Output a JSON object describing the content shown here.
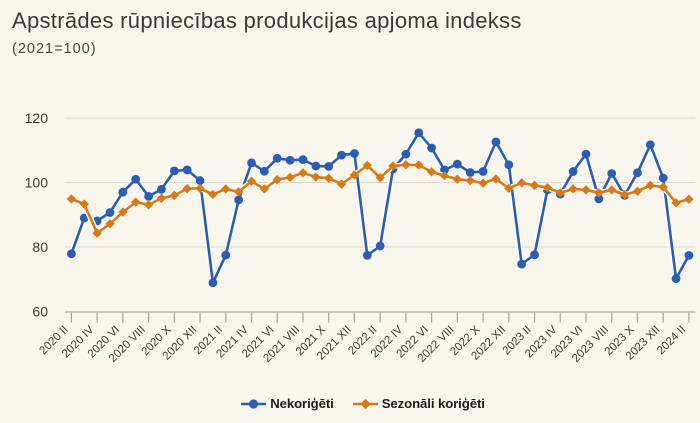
{
  "title": "Apstrādes rūpniecības produkcijas apjoma indekss",
  "subtitle": "(2021=100)",
  "colors": {
    "background": "#f9f6ed",
    "series_blue": "#2a5cb8",
    "series_orange": "#d97a16",
    "gridline": "#dcd8ce",
    "axis_line": "#c3bfb5",
    "tick": "#a6a298",
    "axis_label": "#3b3a35",
    "legend_text": "#1e1d1a",
    "halo": "#fdfcf8"
  },
  "legend": {
    "items": [
      {
        "label": "Nekoriģēti",
        "marker": "circle",
        "color": "#2a5cb8"
      },
      {
        "label": "Sezonāli koriģēti",
        "marker": "diamond",
        "color": "#d97a16"
      }
    ]
  },
  "chart_data": {
    "type": "line",
    "title": "Apstrādes rūpniecības produkcijas apjoma indekss",
    "subtitle": "(2021=100)",
    "xlabel": "",
    "ylabel": "",
    "ylim": [
      60,
      120
    ],
    "yticks": [
      60,
      80,
      100,
      120
    ],
    "grid": true,
    "legend_position": "bottom",
    "x_labels_shown_every": 2,
    "categories": [
      "2020 II",
      "2020 III",
      "2020 IV",
      "2020 V",
      "2020 VI",
      "2020 VII",
      "2020 VIII",
      "2020 IX",
      "2020 X",
      "2020 XI",
      "2020 XII",
      "2021 I",
      "2021 II",
      "2021 III",
      "2021 IV",
      "2021 V",
      "2021 VI",
      "2021 VII",
      "2021 VIII",
      "2021 IX",
      "2021 X",
      "2021 XI",
      "2021 XII",
      "2022 I",
      "2022 II",
      "2022 III",
      "2022 IV",
      "2022 V",
      "2022 VI",
      "2022 VII",
      "2022 VIII",
      "2022 IX",
      "2022 X",
      "2022 XI",
      "2022 XII",
      "2023 I",
      "2023 II",
      "2023 III",
      "2023 IV",
      "2023 V",
      "2023 VI",
      "2023 VII",
      "2023 VIII",
      "2023 IX",
      "2023 X",
      "2023 XI",
      "2023 XII",
      "2024 I",
      "2024 II"
    ],
    "series": [
      {
        "name": "Nekoriģēti",
        "color": "#2a5cb8",
        "marker": "circle",
        "values": [
          77.9,
          89.0,
          88.1,
          90.7,
          97.0,
          101.0,
          95.7,
          97.9,
          103.6,
          103.9,
          100.6,
          68.9,
          77.5,
          94.6,
          106.1,
          103.5,
          107.5,
          106.9,
          107.1,
          105.1,
          105.0,
          108.5,
          109.0,
          77.4,
          80.3,
          104.2,
          108.8,
          115.4,
          110.7,
          103.9,
          105.7,
          103.1,
          103.4,
          112.6,
          105.5,
          74.7,
          77.6,
          97.7,
          96.4,
          103.4,
          108.8,
          94.9,
          102.8,
          96.0,
          103.0,
          111.7,
          101.4,
          70.2,
          77.4
        ]
      },
      {
        "name": "Sezonāli koriģēti",
        "color": "#d97a16",
        "marker": "diamond",
        "values": [
          94.9,
          93.3,
          84.3,
          87.2,
          90.8,
          93.9,
          93.1,
          95.1,
          96.0,
          98.1,
          98.2,
          96.3,
          98.0,
          97.1,
          100.4,
          98.0,
          100.9,
          101.6,
          103.0,
          101.7,
          101.3,
          99.5,
          102.3,
          105.3,
          101.5,
          105.1,
          105.5,
          105.4,
          103.3,
          102.1,
          101.0,
          100.6,
          99.8,
          101.1,
          98.2,
          99.9,
          99.1,
          98.4,
          96.8,
          98.0,
          97.7,
          96.8,
          97.7,
          96.2,
          97.3,
          99.1,
          98.6,
          93.7,
          94.8
        ]
      }
    ]
  }
}
